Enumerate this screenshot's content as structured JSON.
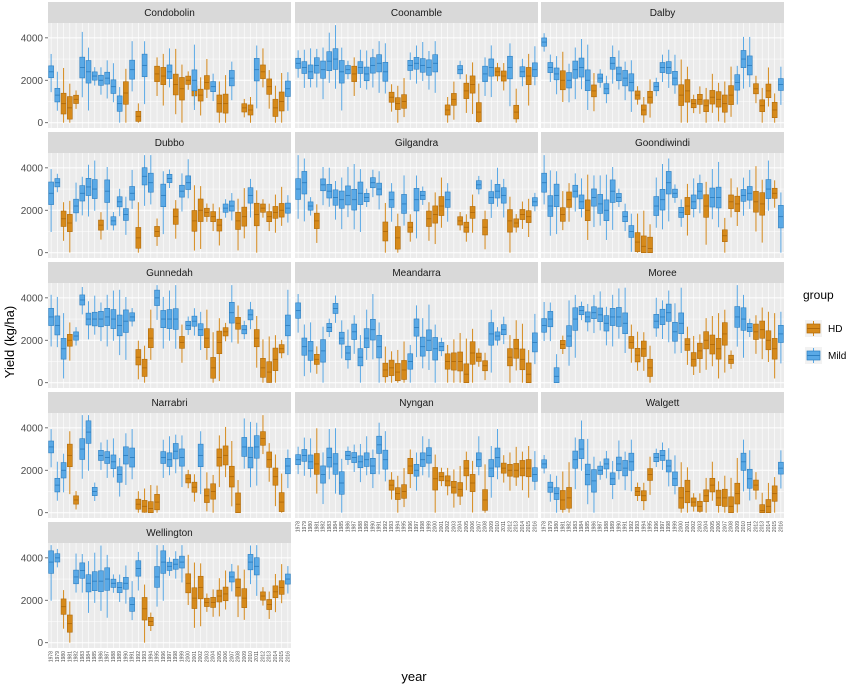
{
  "chart_data": {
    "type": "boxplot",
    "xlabel": "year",
    "ylabel": "Yield (kg/ha)",
    "ylim": [
      0,
      4700
    ],
    "yticks": [
      0,
      2000,
      4000
    ],
    "years": [
      1978,
      1979,
      1980,
      1981,
      1982,
      1983,
      1984,
      1985,
      1986,
      1987,
      1988,
      1989,
      1990,
      1991,
      1992,
      1993,
      1994,
      1995,
      1996,
      1997,
      1998,
      1999,
      2000,
      2001,
      2002,
      2003,
      2004,
      2005,
      2006,
      2007,
      2008,
      2009,
      2010,
      2011,
      2012,
      2013,
      2014,
      2015,
      2016
    ],
    "legend": {
      "title": "group",
      "position": "right",
      "items": [
        {
          "name": "HD",
          "color": "#D68A1B",
          "border": "#B06A0A"
        },
        {
          "name": "Mild",
          "color": "#5AA9E6",
          "border": "#2E7FC0"
        }
      ]
    },
    "panels": [
      {
        "name": "Condobolin",
        "HD": [
          0,
          0,
          900,
          700,
          1100,
          0,
          0,
          0,
          0,
          0,
          0,
          0,
          1400,
          0,
          300,
          0,
          0,
          2300,
          2200,
          0,
          1800,
          1600,
          2000,
          1500,
          1300,
          1900,
          0,
          900,
          900,
          0,
          0,
          700,
          600,
          0,
          2400,
          1700,
          700,
          1000,
          0
        ],
        "Mild": [
          2400,
          1300,
          0,
          0,
          0,
          2600,
          2400,
          2200,
          2000,
          2100,
          1700,
          900,
          0,
          2500,
          0,
          2700,
          0,
          0,
          0,
          2400,
          0,
          0,
          0,
          2000,
          0,
          0,
          1700,
          0,
          0,
          2100,
          0,
          0,
          0,
          2500,
          0,
          0,
          0,
          0,
          1600
        ]
      },
      {
        "name": "Coonamble",
        "HD": [
          0,
          0,
          0,
          0,
          0,
          0,
          0,
          0,
          0,
          2300,
          0,
          0,
          0,
          0,
          0,
          1200,
          900,
          1000,
          0,
          0,
          0,
          0,
          0,
          0,
          600,
          1100,
          0,
          1500,
          1800,
          500,
          0,
          0,
          2400,
          2200,
          0,
          500,
          0,
          2200,
          0
        ],
        "Mild": [
          2800,
          2600,
          2400,
          2700,
          2500,
          2900,
          3000,
          2400,
          2500,
          0,
          2600,
          2300,
          2700,
          2800,
          2400,
          0,
          0,
          0,
          2700,
          2800,
          2700,
          2600,
          2800,
          0,
          0,
          0,
          2500,
          0,
          0,
          0,
          2300,
          2600,
          0,
          0,
          2600,
          0,
          2400,
          0,
          2500
        ]
      },
      {
        "name": "Dalby",
        "HD": [
          0,
          0,
          0,
          2000,
          0,
          0,
          0,
          0,
          1500,
          0,
          0,
          0,
          0,
          0,
          0,
          1300,
          600,
          1200,
          0,
          0,
          0,
          0,
          1300,
          1500,
          900,
          1100,
          800,
          1200,
          1100,
          900,
          1300,
          0,
          0,
          0,
          1600,
          800,
          1500,
          600,
          0
        ],
        "Mild": [
          3800,
          2600,
          2300,
          0,
          2000,
          2500,
          2600,
          2000,
          0,
          2100,
          1600,
          2800,
          2300,
          2100,
          1900,
          0,
          0,
          0,
          1700,
          2600,
          2600,
          2100,
          0,
          0,
          0,
          0,
          0,
          0,
          0,
          0,
          0,
          1900,
          3000,
          2700,
          0,
          0,
          0,
          0,
          1800
        ]
      },
      {
        "name": "Dubbo",
        "HD": [
          0,
          0,
          1600,
          1400,
          0,
          0,
          0,
          0,
          1300,
          0,
          0,
          0,
          0,
          0,
          700,
          0,
          0,
          1000,
          0,
          0,
          1700,
          0,
          0,
          1500,
          2000,
          1900,
          1700,
          1300,
          0,
          0,
          1500,
          1700,
          0,
          1800,
          2100,
          1700,
          1900,
          2000,
          0
        ],
        "Mild": [
          2800,
          3300,
          0,
          0,
          2200,
          2800,
          3100,
          3000,
          0,
          2900,
          1500,
          2400,
          1800,
          2800,
          0,
          3600,
          3300,
          0,
          2700,
          3500,
          0,
          2900,
          3300,
          0,
          0,
          0,
          0,
          0,
          2100,
          2200,
          0,
          0,
          2700,
          0,
          0,
          0,
          0,
          0,
          2100
        ]
      },
      {
        "name": "Gilgandra",
        "HD": [
          0,
          0,
          0,
          1500,
          0,
          0,
          0,
          0,
          0,
          0,
          0,
          0,
          0,
          0,
          1000,
          0,
          700,
          0,
          1200,
          0,
          0,
          1600,
          1800,
          2200,
          0,
          0,
          1500,
          1200,
          1900,
          0,
          1200,
          0,
          0,
          0,
          1500,
          1400,
          1800,
          1700,
          0
        ],
        "Mild": [
          3000,
          3300,
          2200,
          0,
          3200,
          2900,
          2600,
          2500,
          2700,
          2500,
          2800,
          2600,
          3300,
          3000,
          0,
          2500,
          0,
          2300,
          0,
          2500,
          2700,
          0,
          0,
          0,
          2500,
          0,
          0,
          0,
          0,
          3200,
          0,
          2600,
          2900,
          2700,
          0,
          0,
          0,
          0,
          2400
        ]
      },
      {
        "name": "Goondiwindi",
        "HD": [
          0,
          0,
          0,
          1800,
          2500,
          0,
          0,
          2000,
          0,
          0,
          0,
          0,
          0,
          0,
          0,
          500,
          300,
          200,
          0,
          0,
          0,
          0,
          0,
          2200,
          0,
          0,
          2200,
          0,
          0,
          800,
          2400,
          2300,
          0,
          0,
          2400,
          2300,
          0,
          2800,
          0
        ],
        "Mild": [
          3300,
          2200,
          2700,
          0,
          0,
          2900,
          2400,
          0,
          2600,
          2300,
          2000,
          2900,
          2600,
          1700,
          1000,
          0,
          0,
          0,
          2200,
          2500,
          3300,
          2800,
          1900,
          0,
          2400,
          2900,
          0,
          2600,
          2600,
          0,
          0,
          0,
          2700,
          2800,
          0,
          0,
          3000,
          0,
          1700
        ]
      },
      {
        "name": "Gunnedah",
        "HD": [
          0,
          0,
          0,
          2000,
          0,
          0,
          0,
          0,
          0,
          0,
          0,
          0,
          0,
          0,
          1200,
          700,
          2100,
          0,
          0,
          0,
          0,
          1900,
          0,
          0,
          0,
          2100,
          700,
          1900,
          2400,
          0,
          2800,
          0,
          0,
          2100,
          700,
          500,
          1100,
          1600,
          0
        ],
        "Mild": [
          3100,
          2700,
          1600,
          0,
          2200,
          3900,
          3000,
          3000,
          3000,
          3100,
          3000,
          2700,
          2900,
          3100,
          0,
          0,
          0,
          4000,
          3000,
          3000,
          3000,
          0,
          2700,
          2900,
          2500,
          0,
          0,
          0,
          0,
          3300,
          0,
          2500,
          3200,
          0,
          0,
          0,
          0,
          0,
          2700
        ]
      },
      {
        "name": "Meandarra",
        "HD": [
          0,
          0,
          0,
          1100,
          0,
          0,
          0,
          0,
          0,
          0,
          0,
          0,
          0,
          0,
          600,
          700,
          500,
          600,
          0,
          0,
          0,
          0,
          0,
          0,
          1000,
          1000,
          1000,
          400,
          1400,
          1200,
          800,
          0,
          0,
          0,
          1200,
          1600,
          1100,
          400,
          0
        ],
        "Mild": [
          3400,
          1700,
          1500,
          0,
          1500,
          2600,
          3500,
          2100,
          1400,
          2400,
          1200,
          2100,
          2500,
          1700,
          0,
          0,
          0,
          0,
          1000,
          2600,
          1700,
          2000,
          1600,
          1700,
          0,
          0,
          0,
          0,
          0,
          0,
          0,
          2300,
          2200,
          2500,
          0,
          0,
          0,
          0,
          1900
        ]
      },
      {
        "name": "Moree",
        "HD": [
          0,
          0,
          0,
          1800,
          0,
          0,
          0,
          0,
          0,
          0,
          0,
          0,
          0,
          0,
          1900,
          1300,
          1600,
          700,
          0,
          0,
          0,
          0,
          0,
          1800,
          1100,
          1500,
          2000,
          1800,
          1600,
          2300,
          1100,
          0,
          0,
          0,
          2400,
          2500,
          2000,
          1600,
          0
        ],
        "Mild": [
          2700,
          3000,
          300,
          0,
          2200,
          3000,
          3400,
          3100,
          3300,
          3200,
          2800,
          3100,
          3100,
          2800,
          0,
          0,
          0,
          0,
          2900,
          3100,
          3300,
          2400,
          2800,
          0,
          0,
          0,
          0,
          0,
          0,
          0,
          0,
          3100,
          3000,
          2600,
          0,
          0,
          0,
          0,
          2300
        ]
      },
      {
        "name": "Narrabri",
        "HD": [
          0,
          0,
          0,
          2700,
          600,
          0,
          0,
          0,
          0,
          0,
          0,
          0,
          0,
          0,
          400,
          300,
          200,
          500,
          0,
          0,
          0,
          0,
          1600,
          1200,
          0,
          800,
          1000,
          2600,
          2700,
          1700,
          400,
          0,
          0,
          0,
          3500,
          2500,
          1700,
          500,
          0
        ],
        "Mild": [
          3100,
          1300,
          2000,
          0,
          0,
          3000,
          3800,
          1000,
          2700,
          2600,
          2400,
          1800,
          2700,
          2600,
          0,
          0,
          0,
          0,
          2600,
          2500,
          2900,
          2600,
          0,
          0,
          2700,
          0,
          0,
          0,
          0,
          0,
          0,
          3100,
          2600,
          3100,
          0,
          0,
          0,
          0,
          2200
        ]
      },
      {
        "name": "Nyngan",
        "HD": [
          0,
          0,
          0,
          2300,
          0,
          0,
          0,
          0,
          0,
          0,
          0,
          0,
          0,
          0,
          0,
          1300,
          900,
          1000,
          2200,
          0,
          0,
          0,
          1600,
          1700,
          1500,
          1200,
          1100,
          2100,
          1400,
          0,
          600,
          0,
          0,
          2100,
          2000,
          2000,
          2100,
          2100,
          0
        ],
        "Mild": [
          2500,
          2700,
          2400,
          0,
          1800,
          2600,
          2300,
          1400,
          2700,
          2600,
          2400,
          2500,
          2200,
          3200,
          2500,
          0,
          0,
          0,
          0,
          2000,
          2500,
          2700,
          0,
          0,
          0,
          0,
          0,
          0,
          0,
          2500,
          0,
          2100,
          2600,
          0,
          0,
          0,
          0,
          0,
          1800
        ]
      },
      {
        "name": "Walgett",
        "HD": [
          0,
          0,
          0,
          600,
          700,
          0,
          0,
          0,
          0,
          0,
          0,
          0,
          0,
          0,
          0,
          1000,
          800,
          1800,
          0,
          0,
          0,
          0,
          700,
          1000,
          500,
          300,
          800,
          1300,
          700,
          700,
          300,
          900,
          0,
          0,
          1300,
          100,
          300,
          900,
          0
        ],
        "Mild": [
          2300,
          1200,
          900,
          0,
          0,
          2500,
          3000,
          1800,
          1500,
          2000,
          2300,
          1600,
          2300,
          2100,
          2400,
          0,
          0,
          0,
          2600,
          2700,
          2200,
          1600,
          0,
          0,
          0,
          0,
          0,
          0,
          0,
          0,
          0,
          0,
          2400,
          1600,
          0,
          0,
          0,
          0,
          2100
        ]
      },
      {
        "name": "Wellington",
        "HD": [
          0,
          0,
          1700,
          900,
          0,
          0,
          0,
          0,
          0,
          0,
          0,
          0,
          0,
          0,
          0,
          1600,
          1000,
          0,
          0,
          0,
          0,
          0,
          2800,
          2100,
          2600,
          1900,
          1900,
          2200,
          2300,
          0,
          2600,
          2100,
          0,
          0,
          2200,
          1800,
          2400,
          2600,
          0
        ],
        "Mild": [
          3800,
          4000,
          0,
          0,
          3100,
          3400,
          2800,
          2900,
          2900,
          3000,
          2800,
          2600,
          2800,
          1800,
          3500,
          0,
          0,
          3100,
          3800,
          3600,
          3700,
          3800,
          0,
          0,
          0,
          0,
          0,
          0,
          0,
          3100,
          0,
          0,
          3800,
          3600,
          0,
          0,
          0,
          0,
          3000
        ]
      }
    ]
  }
}
